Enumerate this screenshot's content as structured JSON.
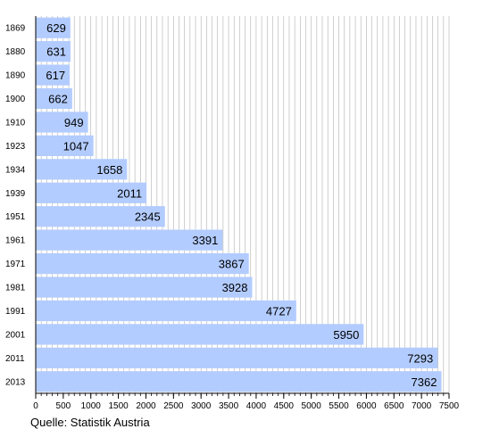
{
  "source": "Quelle: Statistik Austria",
  "chart_data": {
    "type": "bar",
    "orientation": "horizontal",
    "categories": [
      "1869",
      "1880",
      "1890",
      "1900",
      "1910",
      "1923",
      "1934",
      "1939",
      "1951",
      "1961",
      "1971",
      "1981",
      "1991",
      "2001",
      "2011",
      "2013"
    ],
    "values": [
      629,
      631,
      617,
      662,
      949,
      1047,
      1658,
      2011,
      2345,
      3391,
      3867,
      3928,
      4727,
      5950,
      7293,
      7362
    ],
    "xlim": [
      0,
      7500
    ],
    "major_ticks": [
      0,
      500,
      1000,
      1500,
      2000,
      2500,
      3000,
      3500,
      4000,
      4500,
      5000,
      5500,
      6000,
      6500,
      7000,
      7500
    ],
    "minor_tick_step": 100,
    "grid": true,
    "colors": {
      "bar": "#b3ccff",
      "grid": "#b0b0b0",
      "axis": "#000000"
    }
  }
}
